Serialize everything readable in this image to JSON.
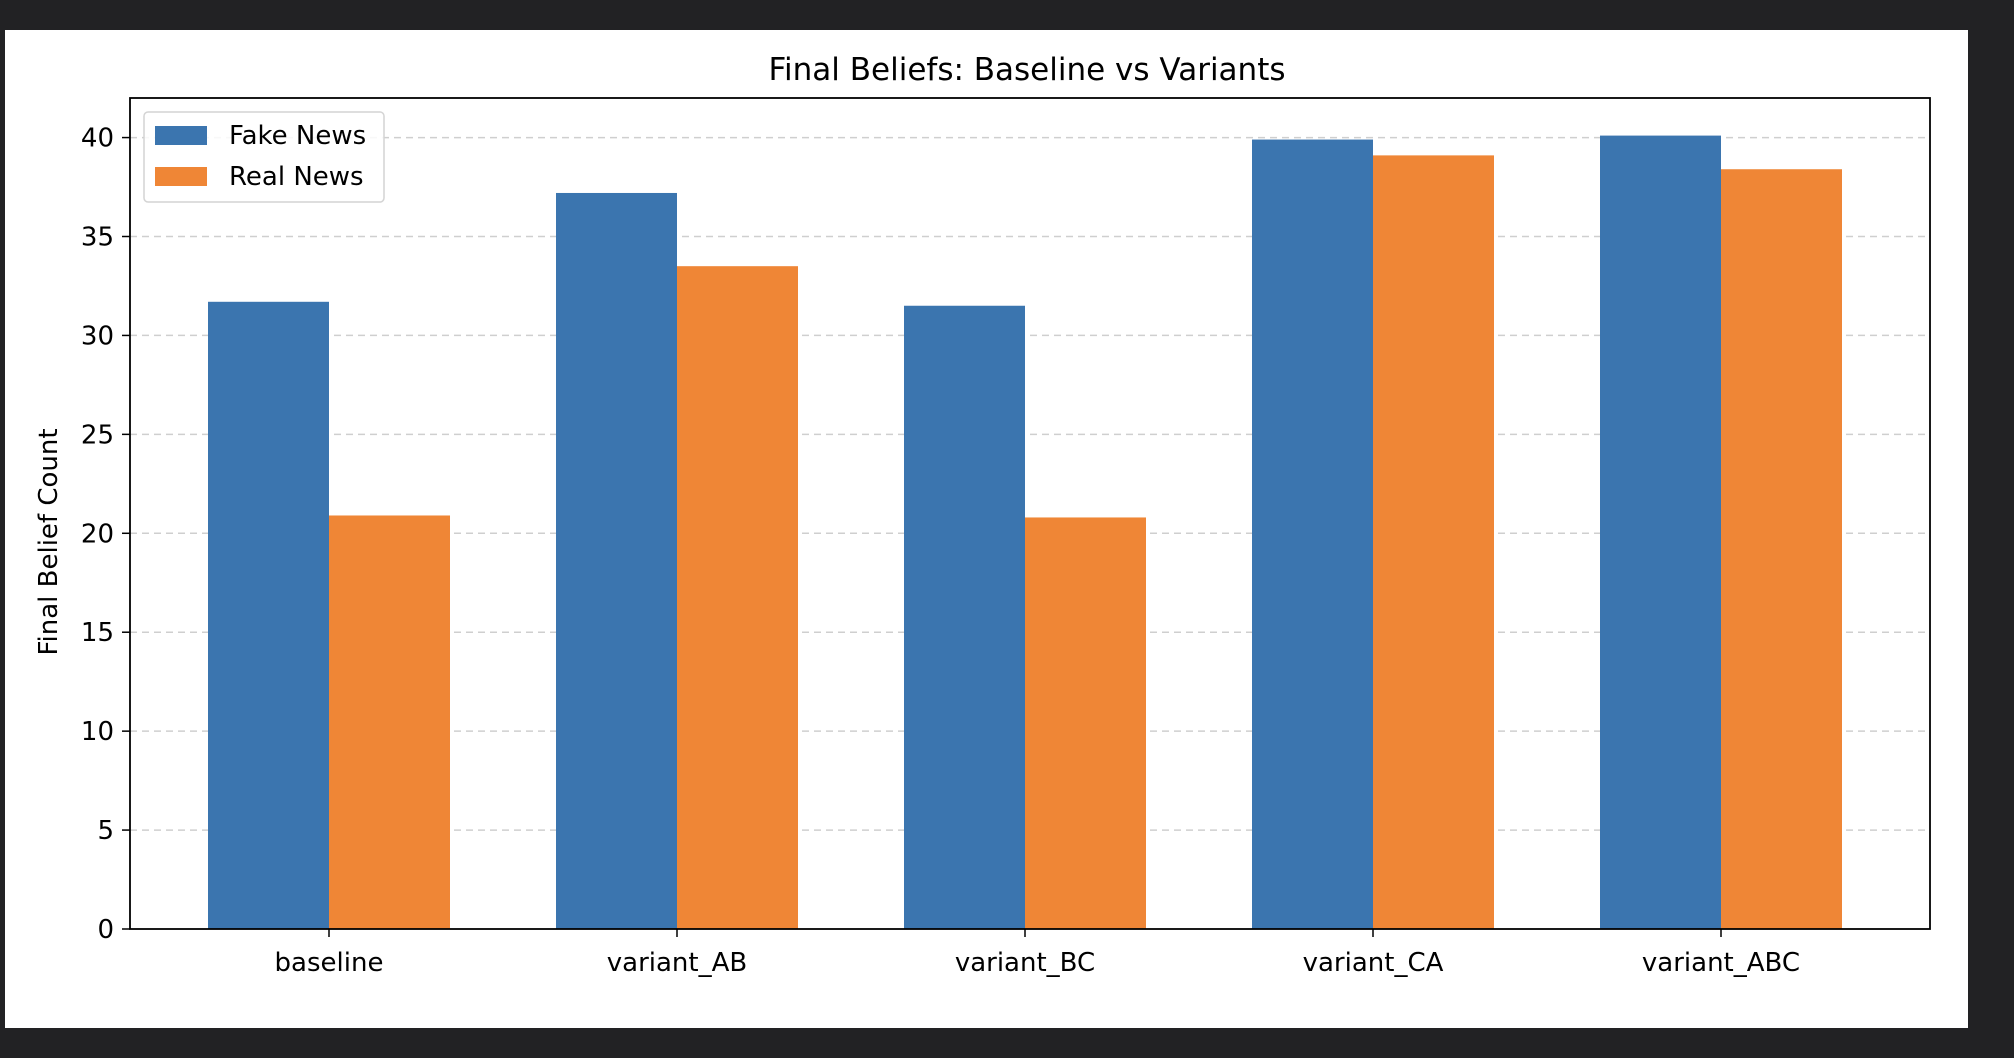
{
  "chart_data": {
    "type": "bar",
    "title": "Final Beliefs: Baseline vs Variants",
    "xlabel": "",
    "ylabel": "Final Belief Count",
    "categories": [
      "baseline",
      "variant_AB",
      "variant_BC",
      "variant_CA",
      "variant_ABC"
    ],
    "series": [
      {
        "name": "Fake News",
        "values": [
          31.7,
          37.2,
          31.5,
          39.9,
          40.1
        ],
        "color": "#3b75af"
      },
      {
        "name": "Real News",
        "values": [
          20.9,
          33.5,
          20.8,
          39.1,
          38.4
        ],
        "color": "#ef8636"
      }
    ],
    "ylim": [
      0,
      42
    ],
    "yticks": [
      0,
      5,
      10,
      15,
      20,
      25,
      30,
      35,
      40
    ],
    "grid": "y-dashed",
    "legend_position": "top-left"
  }
}
